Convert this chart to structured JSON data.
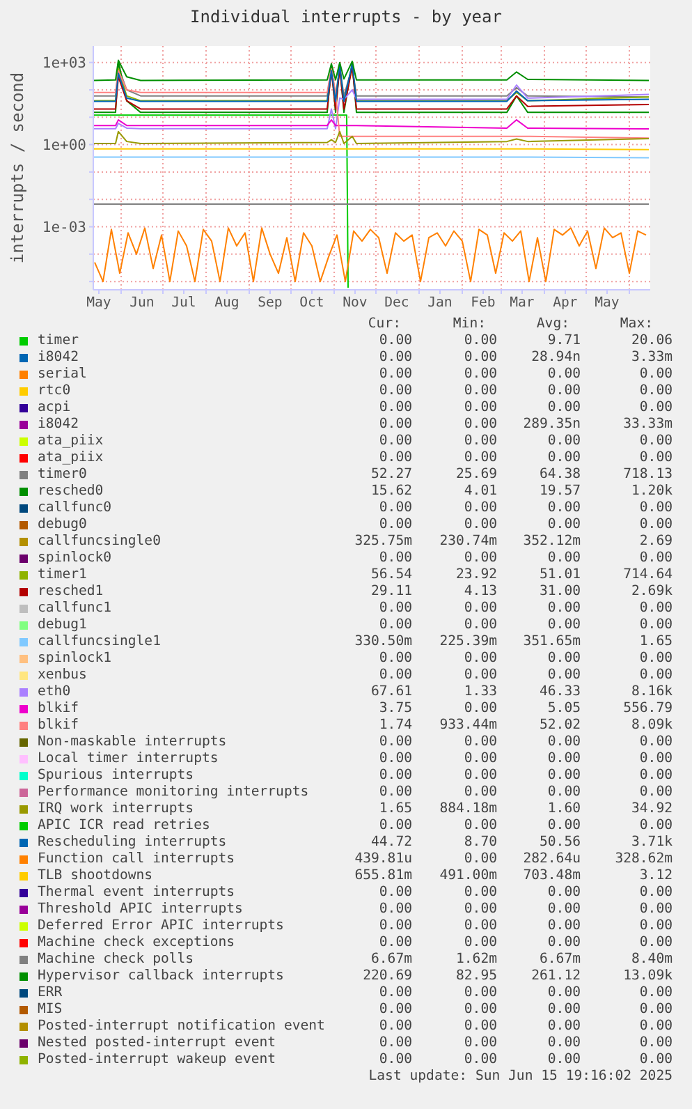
{
  "chart_data": {
    "type": "line",
    "title": "Individual interrupts - by year",
    "ylabel": "interrupts / second",
    "log": true,
    "grid": true,
    "legend": "bottom",
    "marker": "none",
    "xlim": [
      "2024-05-12",
      "2025-06-16"
    ],
    "xticks": [
      {
        "value": "2024-05-16",
        "label": "May"
      },
      {
        "value": "2024-06-01",
        "label": null
      },
      {
        "value": "2024-06-16",
        "label": "Jun"
      },
      {
        "value": "2024-07-01",
        "label": null
      },
      {
        "value": "2024-07-16",
        "label": "Jul"
      },
      {
        "value": "2024-08-01",
        "label": null
      },
      {
        "value": "2024-08-16",
        "label": "Aug"
      },
      {
        "value": "2024-09-01",
        "label": null
      },
      {
        "value": "2024-09-16",
        "label": "Sep"
      },
      {
        "value": "2024-10-01",
        "label": null
      },
      {
        "value": "2024-10-16",
        "label": "Oct"
      },
      {
        "value": "2024-11-01",
        "label": null
      },
      {
        "value": "2024-11-16",
        "label": "Nov"
      },
      {
        "value": "2024-12-01",
        "label": null
      },
      {
        "value": "2024-12-16",
        "label": "Dec"
      },
      {
        "value": "2025-01-01",
        "label": null
      },
      {
        "value": "2025-01-16",
        "label": "Jan"
      },
      {
        "value": "2025-02-01",
        "label": null
      },
      {
        "value": "2025-02-16",
        "label": "Feb"
      },
      {
        "value": "2025-03-01",
        "label": null
      },
      {
        "value": "2025-03-16",
        "label": "Mar"
      },
      {
        "value": "2025-04-01",
        "label": null
      },
      {
        "value": "2025-04-16",
        "label": "Apr"
      },
      {
        "value": "2025-05-01",
        "label": null
      },
      {
        "value": "2025-05-16",
        "label": "May"
      },
      {
        "value": "2025-06-01",
        "label": null
      }
    ],
    "ylim": [
      5e-06,
      4000
    ],
    "yticks": [
      {
        "value": 1e-05,
        "label": null
      },
      {
        "value": 0.0001,
        "label": null
      },
      {
        "value": 0.001,
        "label": "1e-03"
      },
      {
        "value": 0.01,
        "label": null
      },
      {
        "value": 0.1,
        "label": null
      },
      {
        "value": 1,
        "label": "1e+00"
      },
      {
        "value": 10,
        "label": null
      },
      {
        "value": 100,
        "label": null
      },
      {
        "value": 1000,
        "label": "1e+03"
      }
    ],
    "x": [
      "2024-05-12",
      "2024-05-28",
      "2024-05-30",
      "2024-06-05",
      "2024-06-15",
      "2024-10-27",
      "2024-10-30",
      "2024-11-02",
      "2024-11-05",
      "2024-11-08",
      "2024-11-14",
      "2024-11-17",
      "2025-03-05",
      "2025-03-12",
      "2025-03-20",
      "2025-06-15"
    ],
    "series": [
      {
        "name": "timer",
        "color": "#00cc00",
        "x": [
          "2024-05-12",
          "2024-11-10",
          "2024-11-11"
        ],
        "values": [
          12,
          12,
          6e-06
        ]
      },
      {
        "name": "i8042",
        "color": "#0066b3",
        "values": [
          null,
          null,
          null,
          null,
          null,
          null,
          null,
          null,
          null,
          null,
          null,
          null,
          null,
          null,
          null,
          null
        ]
      },
      {
        "name": "serial",
        "color": "#ff8000",
        "values": [
          null,
          null,
          null,
          null,
          null,
          null,
          null,
          null,
          null,
          null,
          null,
          null,
          null,
          null,
          null,
          null
        ]
      },
      {
        "name": "rtc0",
        "color": "#ffcc00",
        "values": [
          null,
          null,
          null,
          null,
          null,
          null,
          null,
          null,
          null,
          null,
          null,
          null,
          null,
          null,
          null,
          null
        ]
      },
      {
        "name": "acpi",
        "color": "#330099",
        "values": [
          null,
          null,
          null,
          null,
          null,
          null,
          null,
          null,
          null,
          null,
          null,
          null,
          null,
          null,
          null,
          null
        ]
      },
      {
        "name": "i8042",
        "color": "#990099",
        "values": [
          null,
          null,
          null,
          null,
          null,
          null,
          null,
          null,
          null,
          null,
          null,
          null,
          null,
          null,
          null,
          null
        ]
      },
      {
        "name": "ata_piix",
        "color": "#ccff00",
        "values": [
          null,
          null,
          null,
          null,
          null,
          null,
          null,
          null,
          null,
          null,
          null,
          null,
          null,
          null,
          null,
          null
        ]
      },
      {
        "name": "ata_piix",
        "color": "#ff0000",
        "values": [
          null,
          null,
          null,
          null,
          null,
          null,
          null,
          null,
          null,
          null,
          null,
          null,
          null,
          null,
          null,
          null
        ]
      },
      {
        "name": "timer0",
        "color": "#808080",
        "values": [
          60,
          60,
          700,
          100,
          60,
          60,
          600,
          60,
          700,
          60,
          700,
          60,
          60,
          120,
          60,
          55
        ]
      },
      {
        "name": "resched0",
        "color": "#008f00",
        "values": [
          15,
          15,
          1100,
          40,
          15,
          15,
          800,
          15,
          900,
          15,
          1000,
          15,
          15,
          60,
          15,
          15
        ]
      },
      {
        "name": "callfunc0",
        "color": "#00487d",
        "values": [
          null,
          null,
          null,
          null,
          null,
          null,
          null,
          null,
          null,
          null,
          null,
          null,
          null,
          null,
          null,
          null
        ]
      },
      {
        "name": "debug0",
        "color": "#b35a00",
        "values": [
          null,
          null,
          null,
          null,
          null,
          null,
          null,
          null,
          null,
          null,
          null,
          null,
          null,
          null,
          null,
          null
        ]
      },
      {
        "name": "callfuncsingle0",
        "color": "#b38f00",
        "values": [
          null,
          null,
          null,
          null,
          null,
          null,
          null,
          null,
          null,
          null,
          null,
          null,
          null,
          null,
          null,
          null
        ]
      },
      {
        "name": "spinlock0",
        "color": "#6b006b",
        "values": [
          null,
          null,
          null,
          null,
          null,
          null,
          null,
          null,
          null,
          null,
          null,
          null,
          null,
          null,
          null,
          null
        ]
      },
      {
        "name": "timer1",
        "color": "#8fb300",
        "values": [
          40,
          40,
          600,
          60,
          40,
          40,
          500,
          40,
          600,
          40,
          600,
          40,
          40,
          80,
          40,
          55
        ]
      },
      {
        "name": "resched1",
        "color": "#b30000",
        "values": [
          20,
          20,
          300,
          40,
          20,
          20,
          500,
          20,
          600,
          20,
          700,
          20,
          20,
          60,
          25,
          29
        ]
      },
      {
        "name": "callfunc1",
        "color": "#bebebe",
        "values": [
          null,
          null,
          null,
          null,
          null,
          null,
          null,
          null,
          null,
          null,
          null,
          null,
          null,
          null,
          null,
          null
        ]
      },
      {
        "name": "debug1",
        "color": "#80ff80",
        "values": [
          null,
          null,
          null,
          null,
          null,
          null,
          null,
          null,
          null,
          null,
          null,
          null,
          null,
          null,
          null,
          null
        ]
      },
      {
        "name": "callfuncsingle1",
        "color": "#80c9ff",
        "values": [
          0.35,
          0.35,
          0.35,
          0.35,
          0.35,
          0.35,
          0.35,
          0.35,
          0.35,
          0.35,
          0.35,
          0.35,
          0.35,
          0.35,
          0.35,
          0.33
        ]
      },
      {
        "name": "spinlock1",
        "color": "#ffc080",
        "values": [
          null,
          null,
          null,
          null,
          null,
          null,
          null,
          null,
          null,
          null,
          null,
          null,
          null,
          null,
          null,
          null
        ]
      },
      {
        "name": "xenbus",
        "color": "#ffe680",
        "values": [
          null,
          null,
          null,
          null,
          null,
          null,
          null,
          null,
          null,
          null,
          null,
          null,
          null,
          null,
          null,
          null
        ]
      },
      {
        "name": "eth0",
        "color": "#aa80ff",
        "values": [
          3.8,
          3.8,
          6,
          4,
          3.8,
          3.8,
          20,
          3.8,
          50,
          45,
          100,
          45,
          45,
          150,
          50,
          68
        ]
      },
      {
        "name": "blkif",
        "color": "#ee00cc",
        "values": [
          5,
          5,
          8,
          5,
          5,
          5,
          8,
          5,
          5,
          5,
          5,
          5,
          4,
          8,
          4,
          3.75
        ]
      },
      {
        "name": "blkif",
        "color": "#ff8080",
        "values": [
          80,
          80,
          500,
          100,
          80,
          80,
          600,
          80,
          2,
          2,
          2,
          2,
          2,
          2,
          2,
          1.74
        ]
      },
      {
        "name": "Non-maskable interrupts",
        "color": "#666600",
        "values": [
          null,
          null,
          null,
          null,
          null,
          null,
          null,
          null,
          null,
          null,
          null,
          null,
          null,
          null,
          null,
          null
        ]
      },
      {
        "name": "Local timer interrupts",
        "color": "#ffbfff",
        "values": [
          null,
          null,
          null,
          null,
          null,
          null,
          null,
          null,
          null,
          null,
          null,
          null,
          null,
          null,
          null,
          null
        ]
      },
      {
        "name": "Spurious interrupts",
        "color": "#00ffcc",
        "values": [
          null,
          null,
          null,
          null,
          null,
          null,
          null,
          null,
          null,
          null,
          null,
          null,
          null,
          null,
          null,
          null
        ]
      },
      {
        "name": "Performance monitoring interrupts",
        "color": "#cc6699",
        "values": [
          null,
          null,
          null,
          null,
          null,
          null,
          null,
          null,
          null,
          null,
          null,
          null,
          null,
          null,
          null,
          null
        ]
      },
      {
        "name": "IRQ work interrupts",
        "color": "#999900",
        "values": [
          1.1,
          1.1,
          3,
          1.3,
          1.1,
          1.2,
          1.5,
          1.2,
          3,
          1.1,
          2,
          1.1,
          1.3,
          1.6,
          1.3,
          1.65
        ]
      },
      {
        "name": "APIC ICR read retries",
        "color": "#00cc00",
        "values": [
          null,
          null,
          null,
          null,
          null,
          null,
          null,
          null,
          null,
          null,
          null,
          null,
          null,
          null,
          null,
          null
        ]
      },
      {
        "name": "Rescheduling interrupts",
        "color": "#0066b3",
        "values": [
          38,
          38,
          400,
          50,
          38,
          38,
          500,
          38,
          800,
          38,
          900,
          38,
          38,
          90,
          40,
          45
        ]
      },
      {
        "name": "Function call interrupts",
        "color": "#ff8000",
        "x": [
          "2024-05-13",
          "2024-05-19",
          "2024-05-25",
          "2024-05-31",
          "2024-06-06",
          "2024-06-12",
          "2024-06-18",
          "2024-06-24",
          "2024-06-30",
          "2024-07-06",
          "2024-07-12",
          "2024-07-18",
          "2024-07-24",
          "2024-07-30",
          "2024-08-05",
          "2024-08-11",
          "2024-08-17",
          "2024-08-23",
          "2024-08-29",
          "2024-09-04",
          "2024-09-10",
          "2024-09-16",
          "2024-09-22",
          "2024-09-28",
          "2024-10-04",
          "2024-10-10",
          "2024-10-16",
          "2024-10-22",
          "2024-10-28",
          "2024-11-03",
          "2024-11-09",
          "2024-11-15",
          "2024-11-21",
          "2024-11-27",
          "2024-12-03",
          "2024-12-09",
          "2024-12-15",
          "2024-12-21",
          "2024-12-27",
          "2025-01-02",
          "2025-01-08",
          "2025-01-14",
          "2025-01-20",
          "2025-01-26",
          "2025-02-01",
          "2025-02-07",
          "2025-02-13",
          "2025-02-19",
          "2025-02-25",
          "2025-03-03",
          "2025-03-09",
          "2025-03-15",
          "2025-03-21",
          "2025-03-27",
          "2025-04-02",
          "2025-04-08",
          "2025-04-14",
          "2025-04-20",
          "2025-04-26",
          "2025-05-02",
          "2025-05-08",
          "2025-05-14",
          "2025-05-20",
          "2025-05-26",
          "2025-06-01",
          "2025-06-07",
          "2025-06-13"
        ],
        "values": [
          5e-05,
          1e-05,
          0.0008,
          2e-05,
          0.0006,
          0.0001,
          0.0009,
          3e-05,
          0.0005,
          1e-05,
          0.0007,
          0.0002,
          1e-05,
          0.0008,
          0.0003,
          1e-05,
          0.0009,
          0.0002,
          0.0006,
          1e-05,
          0.0009,
          0.0001,
          2e-05,
          0.0004,
          1e-05,
          0.0006,
          0.0002,
          1e-05,
          8e-05,
          0.0005,
          1e-05,
          0.0007,
          0.0003,
          0.0008,
          0.0004,
          2e-05,
          0.0006,
          0.0003,
          0.0005,
          1e-05,
          0.0004,
          0.0006,
          0.0002,
          0.0007,
          0.0003,
          1e-05,
          0.0008,
          0.0005,
          2e-05,
          0.0006,
          0.0003,
          0.0007,
          1e-05,
          0.0004,
          1e-05,
          0.0008,
          0.0005,
          0.0009,
          0.0002,
          0.0007,
          3e-05,
          0.0009,
          0.0004,
          0.0006,
          2e-05,
          0.0007,
          0.0005
        ]
      },
      {
        "name": "TLB shootdowns",
        "color": "#ffcc00",
        "values": [
          0.7,
          0.7,
          0.7,
          0.7,
          0.7,
          0.7,
          0.7,
          0.7,
          0.7,
          0.7,
          0.7,
          0.7,
          0.7,
          0.7,
          0.7,
          0.66
        ]
      },
      {
        "name": "Thermal event interrupts",
        "color": "#330099",
        "values": [
          null,
          null,
          null,
          null,
          null,
          null,
          null,
          null,
          null,
          null,
          null,
          null,
          null,
          null,
          null,
          null
        ]
      },
      {
        "name": "Threshold APIC interrupts",
        "color": "#990099",
        "values": [
          null,
          null,
          null,
          null,
          null,
          null,
          null,
          null,
          null,
          null,
          null,
          null,
          null,
          null,
          null,
          null
        ]
      },
      {
        "name": "Deferred Error APIC interrupts",
        "color": "#ccff00",
        "values": [
          null,
          null,
          null,
          null,
          null,
          null,
          null,
          null,
          null,
          null,
          null,
          null,
          null,
          null,
          null,
          null
        ]
      },
      {
        "name": "Machine check exceptions",
        "color": "#ff0000",
        "values": [
          null,
          null,
          null,
          null,
          null,
          null,
          null,
          null,
          null,
          null,
          null,
          null,
          null,
          null,
          null,
          null
        ]
      },
      {
        "name": "Machine check polls",
        "color": "#808080",
        "values": [
          0.0067,
          0.0067,
          0.0067,
          0.0067,
          0.0067,
          0.0067,
          0.0067,
          0.0067,
          0.0067,
          0.0067,
          0.0067,
          0.0067,
          0.0067,
          0.0067,
          0.0067,
          0.0067
        ]
      },
      {
        "name": "Hypervisor callback interrupts",
        "color": "#008f00",
        "values": [
          220,
          230,
          1200,
          300,
          220,
          230,
          900,
          230,
          1000,
          250,
          1100,
          230,
          230,
          450,
          240,
          220
        ]
      },
      {
        "name": "ERR",
        "color": "#00487d",
        "values": [
          null,
          null,
          null,
          null,
          null,
          null,
          null,
          null,
          null,
          null,
          null,
          null,
          null,
          null,
          null,
          null
        ]
      },
      {
        "name": "MIS",
        "color": "#b35a00",
        "values": [
          null,
          null,
          null,
          null,
          null,
          null,
          null,
          null,
          null,
          null,
          null,
          null,
          null,
          null,
          null,
          null
        ]
      },
      {
        "name": "Posted-interrupt notification event",
        "color": "#b38f00",
        "values": [
          null,
          null,
          null,
          null,
          null,
          null,
          null,
          null,
          null,
          null,
          null,
          null,
          null,
          null,
          null,
          null
        ]
      },
      {
        "name": "Nested posted-interrupt event",
        "color": "#6b006b",
        "values": [
          null,
          null,
          null,
          null,
          null,
          null,
          null,
          null,
          null,
          null,
          null,
          null,
          null,
          null,
          null,
          null
        ]
      },
      {
        "name": "Posted-interrupt wakeup event",
        "color": "#8fb300",
        "values": [
          null,
          null,
          null,
          null,
          null,
          null,
          null,
          null,
          null,
          null,
          null,
          null,
          null,
          null,
          null,
          null
        ]
      }
    ],
    "annotations": [
      "Cur: Min: Avg: Max:",
      "0.00 0.00 9.71 20.06",
      "0.00 0.00 28.94n 3.33m",
      "0.00 0.00 0.00 0.00",
      "0.00 0.00 0.00 0.00",
      "0.00 0.00 0.00 0.00",
      "0.00 0.00 289.35n 33.33m",
      "0.00 0.00 0.00 0.00",
      "0.00 0.00 0.00 0.00",
      "52.27 25.69 64.38 718.13",
      "15.62 4.01 19.57 1.20k",
      "0.00 0.00 0.00 0.00",
      "0.00 0.00 0.00 0.00",
      "325.75m 230.74m 352.12m 2.69",
      "0.00 0.00 0.00 0.00",
      "56.54 23.92 51.01 714.64",
      "29.11 4.13 31.00 2.69k",
      "0.00 0.00 0.00 0.00",
      "0.00 0.00 0.00 0.00",
      "330.50m 225.39m 351.65m 1.65",
      "0.00 0.00 0.00 0.00",
      "0.00 0.00 0.00 0.00",
      "67.61 1.33 46.33 8.16k",
      "3.75 0.00 5.05 556.79",
      "1.74 933.44m 52.02 8.09k",
      "0.00 0.00 0.00 0.00",
      "0.00 0.00 0.00 0.00",
      "0.00 0.00 0.00 0.00",
      "0.00 0.00 0.00 0.00",
      "1.65 884.18m 1.60 34.92",
      "0.00 0.00 0.00 0.00",
      "44.72 8.70 50.56 3.71k",
      "439.81u 0.00 282.64u 328.62m",
      "655.81m 491.00m 703.48m 3.12",
      "0.00 0.00 0.00 0.00",
      "0.00 0.00 0.00 0.00",
      "0.00 0.00 0.00 0.00",
      "0.00 0.00 0.00 0.00",
      "6.67m 1.62m 6.67m 8.40m",
      "220.69 82.95 261.12 13.09k",
      "0.00 0.00 0.00 0.00",
      "0.00 0.00 0.00 0.00",
      "0.00 0.00 0.00 0.00",
      "0.00 0.00 0.00 0.00",
      "0.00 0.00 0.00 0.00",
      "Last update: Sun Jun 15 19:16:02 2025"
    ]
  }
}
